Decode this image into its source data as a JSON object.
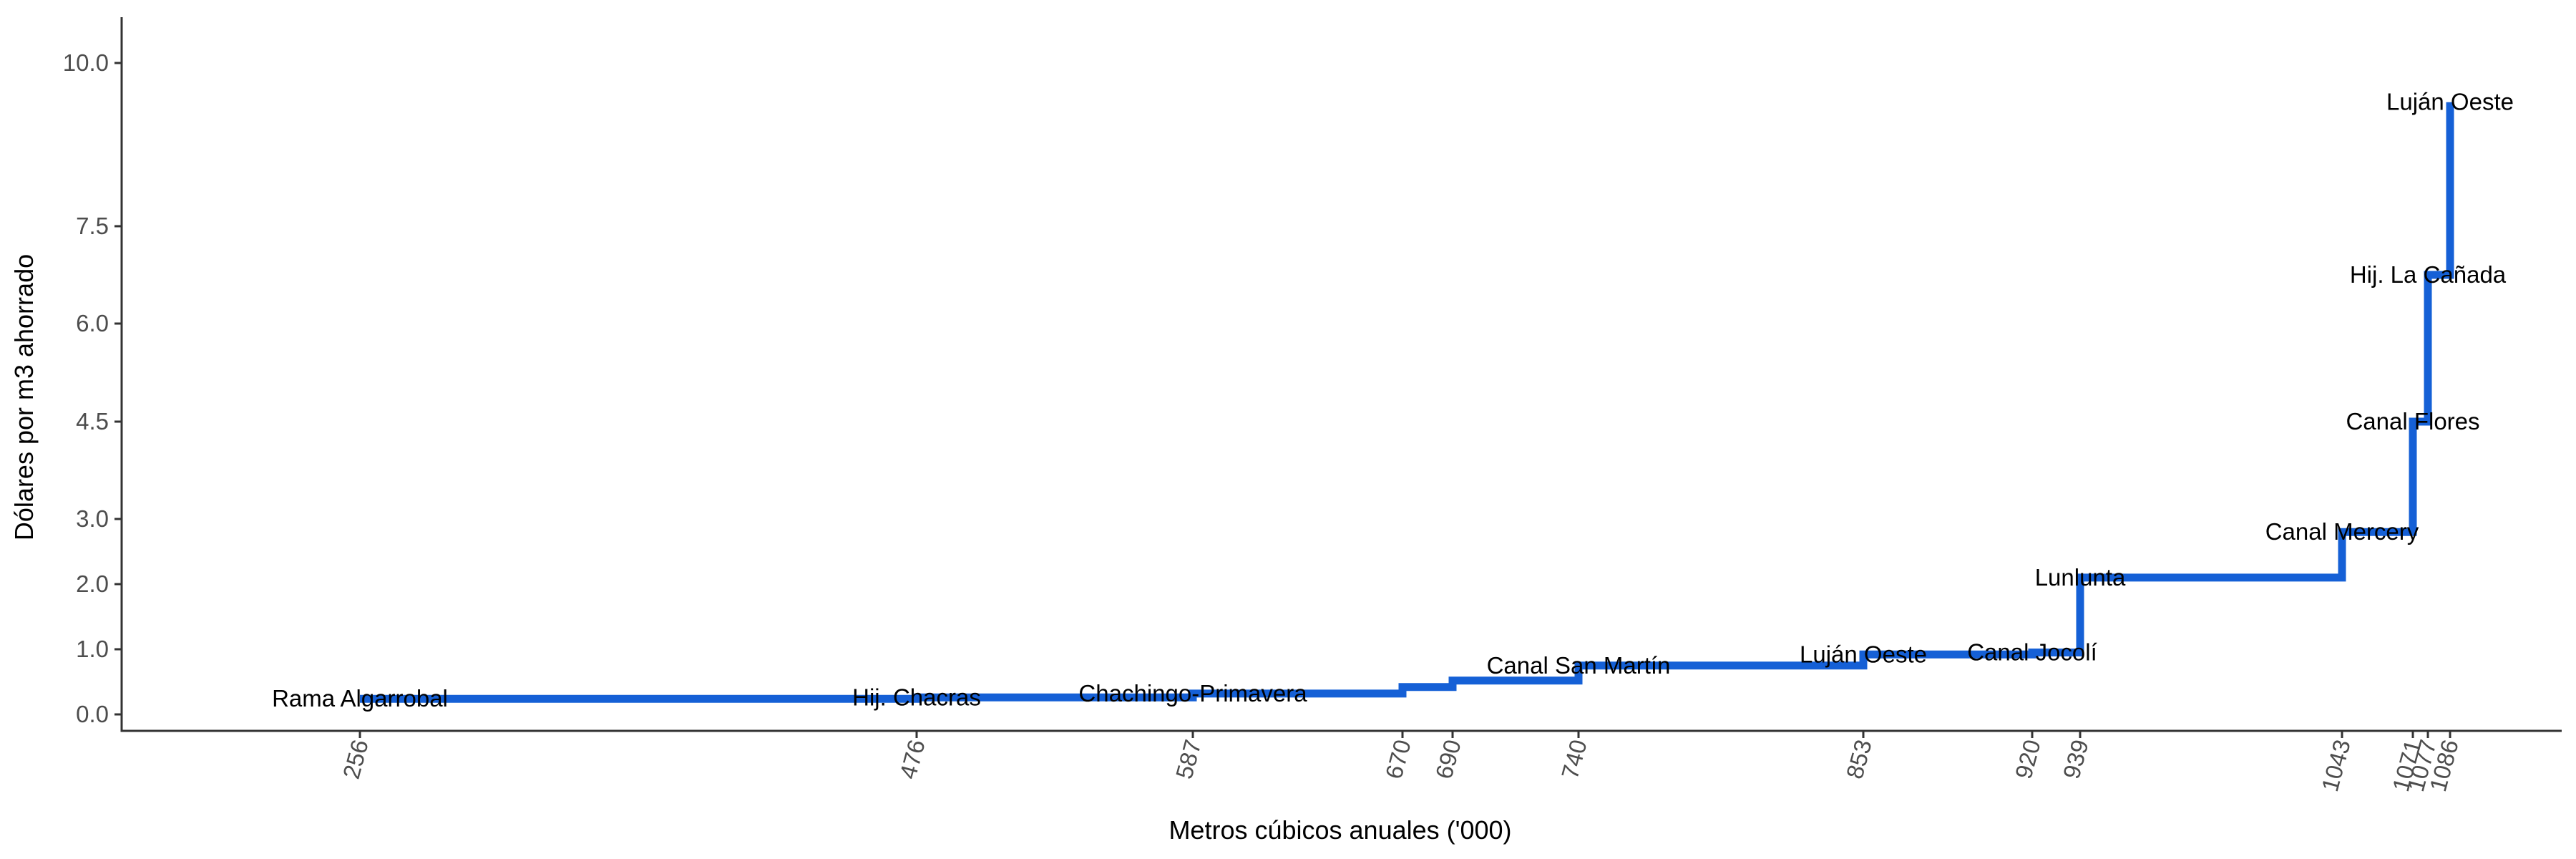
{
  "chart_data": {
    "type": "line",
    "subtype": "step",
    "title": "",
    "xlabel": "Metros cúbicos anuales ('000)",
    "ylabel": "Dólares por m3 ahorrado",
    "ylim": [
      -0.27,
      10.65
    ],
    "xlim": [
      -78,
      3640
    ],
    "y_tick_labels": [
      "0.0",
      "1.0",
      "2.0",
      "3.0",
      "4.5",
      "6.0",
      "7.5",
      "10.0"
    ],
    "x_ticks": [
      256,
      476,
      587,
      670,
      690,
      740,
      853,
      920,
      939,
      1043,
      1071,
      1077,
      1086
    ],
    "x_tick_labels": [
      "256",
      "476",
      "587",
      "670",
      "690",
      "740",
      "853",
      "920",
      "939",
      "1043",
      "1071",
      "1077",
      "1086"
    ],
    "series": [
      {
        "values": [
          {
            "x": 256,
            "y": 0.24
          },
          {
            "x": 476,
            "y": 0.26
          },
          {
            "x": 587,
            "y": 0.32
          },
          {
            "x": 670,
            "y": 0.42
          },
          {
            "x": 690,
            "y": 0.52
          },
          {
            "x": 740,
            "y": 0.75
          },
          {
            "x": 853,
            "y": 0.92
          },
          {
            "x": 920,
            "y": 0.95
          },
          {
            "x": 939,
            "y": 2.1
          },
          {
            "x": 1043,
            "y": 2.8
          },
          {
            "x": 1071,
            "y": 4.5
          },
          {
            "x": 1077,
            "y": 6.75
          },
          {
            "x": 1086,
            "y": 9.4
          }
        ]
      }
    ],
    "annotations": [
      {
        "text": "Rama Algarrobal",
        "x": 256,
        "y": 0.24
      },
      {
        "text": "Hij. Chacras",
        "x": 476,
        "y": 0.26
      },
      {
        "text": "Chachingo-Primavera",
        "x": 587,
        "y": 0.32
      },
      {
        "text": "Canal San Martín",
        "x": 740,
        "y": 0.75
      },
      {
        "text": "Luján Oeste",
        "x": 853,
        "y": 0.92
      },
      {
        "text": "Canal Jocolí",
        "x": 920,
        "y": 0.95
      },
      {
        "text": "Lunlunta",
        "x": 939,
        "y": 2.1
      },
      {
        "text": "Canal Mercery",
        "x": 1043,
        "y": 2.8
      },
      {
        "text": "Canal Flores",
        "x": 1071,
        "y": 4.5
      },
      {
        "text": "Hij. La Cañada",
        "x": 1077,
        "y": 6.75
      },
      {
        "text": "Luján Oeste",
        "x": 1086,
        "y": 9.4
      }
    ],
    "line_color": "#1560d6",
    "grid": false,
    "legend": "none"
  }
}
